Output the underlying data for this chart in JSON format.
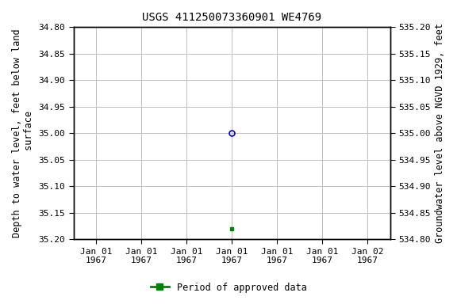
{
  "title": "USGS 411250073360901 WE4769",
  "left_ylabel_lines": [
    "Depth to water level, feet below land",
    " surface"
  ],
  "right_ylabel": "Groundwater level above NGVD 1929, feet",
  "ylim_left": [
    35.2,
    34.8
  ],
  "ylim_right": [
    534.8,
    535.2
  ],
  "yticks_left": [
    34.8,
    34.85,
    34.9,
    34.95,
    35.0,
    35.05,
    35.1,
    35.15,
    35.2
  ],
  "yticks_right": [
    535.2,
    535.15,
    535.1,
    535.05,
    535.0,
    534.95,
    534.9,
    534.85,
    534.8
  ],
  "xticks": [
    0,
    1,
    2,
    3,
    4,
    5,
    6
  ],
  "xtick_labels": [
    "Jan 01\n1967",
    "Jan 01\n1967",
    "Jan 01\n1967",
    "Jan 01\n1967",
    "Jan 01\n1967",
    "Jan 01\n1967",
    "Jan 02\n1967"
  ],
  "xlim": [
    -0.5,
    6.5
  ],
  "blue_x": 3,
  "blue_y": 35.0,
  "green_x": 3,
  "green_y": 35.18,
  "background_color": "#ffffff",
  "grid_color": "#c0c0c0",
  "border_color": "#000000",
  "blue_color": "#0000cc",
  "green_color": "#008000",
  "legend_label": "Period of approved data",
  "title_fontsize": 10,
  "tick_fontsize": 8,
  "label_fontsize": 8.5
}
